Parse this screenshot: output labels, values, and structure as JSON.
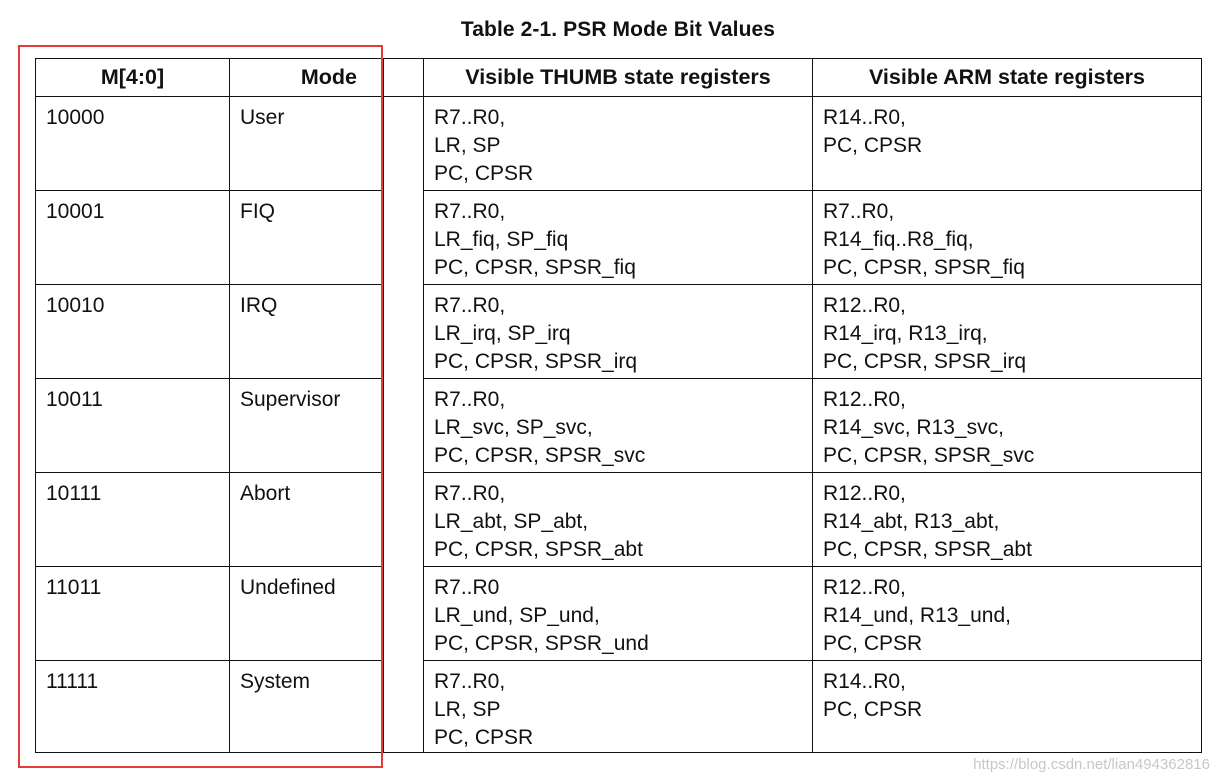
{
  "title": "Table 2-1. PSR Mode Bit Values",
  "headers": {
    "mbits": "M[4:0]",
    "mode": "Mode",
    "thumb": "Visible THUMB state registers",
    "arm": "Visible ARM state registers"
  },
  "rows": [
    {
      "mbits": "10000",
      "mode": "User",
      "thumb": [
        "R7..R0,",
        "LR, SP",
        "PC, CPSR"
      ],
      "arm": [
        "R14..R0,",
        "PC, CPSR"
      ]
    },
    {
      "mbits": "10001",
      "mode": "FIQ",
      "thumb": [
        "R7..R0,",
        "LR_fiq, SP_fiq",
        "PC, CPSR, SPSR_fiq"
      ],
      "arm": [
        "R7..R0,",
        "R14_fiq..R8_fiq,",
        "PC, CPSR, SPSR_fiq"
      ]
    },
    {
      "mbits": "10010",
      "mode": "IRQ",
      "thumb": [
        "R7..R0,",
        "LR_irq, SP_irq",
        "PC, CPSR, SPSR_irq"
      ],
      "arm": [
        "R12..R0,",
        "R14_irq, R13_irq,",
        "PC, CPSR, SPSR_irq"
      ]
    },
    {
      "mbits": "10011",
      "mode": "Supervisor",
      "thumb": [
        "R7..R0,",
        "LR_svc, SP_svc,",
        "PC, CPSR, SPSR_svc"
      ],
      "arm": [
        "R12..R0,",
        "R14_svc, R13_svc,",
        "PC, CPSR, SPSR_svc"
      ]
    },
    {
      "mbits": "10111",
      "mode": "Abort",
      "thumb": [
        "R7..R0,",
        "LR_abt, SP_abt,",
        "PC, CPSR, SPSR_abt"
      ],
      "arm": [
        "R12..R0,",
        "R14_abt, R13_abt,",
        "PC, CPSR, SPSR_abt"
      ]
    },
    {
      "mbits": "11011",
      "mode": "Undefined",
      "thumb": [
        "R7..R0",
        "LR_und, SP_und,",
        "PC, CPSR, SPSR_und"
      ],
      "arm": [
        "R12..R0,",
        "R14_und, R13_und,",
        "PC, CPSR"
      ]
    },
    {
      "mbits": "11111",
      "mode": "System",
      "thumb": [
        "R7..R0,",
        "LR, SP",
        "PC, CPSR"
      ],
      "arm": [
        "R14..R0,",
        "PC, CPSR"
      ]
    }
  ],
  "watermark": "https://blog.csdn.net/lian494362816",
  "colors": {
    "highlight_border": "#e23b3b",
    "table_border": "#111111"
  }
}
